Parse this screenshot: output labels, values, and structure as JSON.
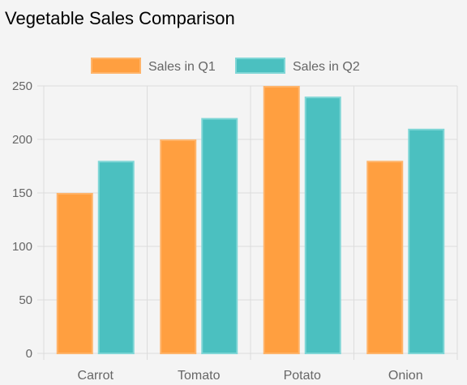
{
  "page": {
    "title": "Vegetable Sales Comparison"
  },
  "chart_data": {
    "type": "bar",
    "title": "Vegetable Sales Comparison",
    "xlabel": "",
    "ylabel": "",
    "categories": [
      "Carrot",
      "Tomato",
      "Potato",
      "Onion"
    ],
    "series": [
      {
        "name": "Sales in Q1",
        "values": [
          150,
          200,
          250,
          180
        ],
        "color": "#ff9f40",
        "border_color": "#ffb46a"
      },
      {
        "name": "Sales in Q2",
        "values": [
          180,
          220,
          240,
          210
        ],
        "color": "#4bc0c0",
        "border_color": "#7fd6d6"
      }
    ],
    "ylim": [
      0,
      250
    ],
    "yticks": [
      0,
      50,
      100,
      150,
      200,
      250
    ],
    "grid": true,
    "legend_position": "top"
  }
}
